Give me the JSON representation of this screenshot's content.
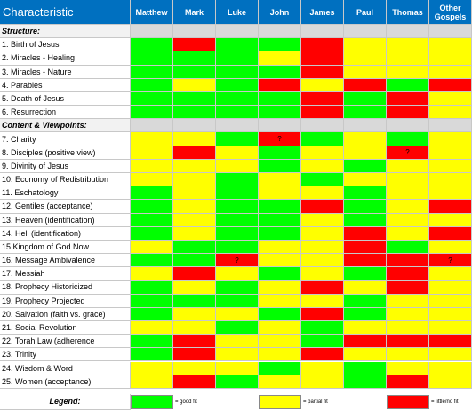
{
  "header": {
    "first": "Characteristic",
    "columns": [
      "Matthew",
      "Mark",
      "Luke",
      "John",
      "James",
      "Paul",
      "Thomas",
      "Other Gospels"
    ]
  },
  "colors": {
    "G": "#00ff00",
    "Y": "#ffff00",
    "R": "#ff0000",
    "grey": "#d9d9d9"
  },
  "rows": [
    {
      "section": true,
      "label": "Structure:"
    },
    {
      "label": "1. Birth of Jesus",
      "cells": [
        "G",
        "R",
        "G",
        "G",
        "R",
        "Y",
        "Y",
        "Y"
      ]
    },
    {
      "label": "2. Miracles - Healing",
      "cells": [
        "G",
        "G",
        "G",
        "Y",
        "R",
        "Y",
        "Y",
        "Y"
      ]
    },
    {
      "label": "3. Miracles - Nature",
      "cells": [
        "G",
        "G",
        "G",
        "G",
        "R",
        "Y",
        "Y",
        "Y"
      ]
    },
    {
      "label": "4. Parables",
      "cells": [
        "G",
        "Y",
        "G",
        "R",
        "Y",
        "R",
        "G",
        "R"
      ]
    },
    {
      "label": "5. Death of Jesus",
      "cells": [
        "G",
        "G",
        "G",
        "G",
        "R",
        "G",
        "R",
        "Y"
      ]
    },
    {
      "label": "6. Resurrection",
      "cells": [
        "G",
        "G",
        "G",
        "G",
        "R",
        "G",
        "R",
        "Y"
      ]
    },
    {
      "section": true,
      "label": "Content & Viewpoints:"
    },
    {
      "label": "7. Charity",
      "cells": [
        "Y",
        "Y",
        "G",
        "R",
        "G",
        "Y",
        "G",
        "Y"
      ],
      "marks": {
        "3": "?"
      }
    },
    {
      "label": "8. Disciples (positive view)",
      "cells": [
        "Y",
        "R",
        "Y",
        "G",
        "Y",
        "Y",
        "R",
        "Y"
      ],
      "marks": {
        "6": "?"
      }
    },
    {
      "label": "9. Divinity of Jesus",
      "cells": [
        "Y",
        "Y",
        "Y",
        "G",
        "Y",
        "G",
        "Y",
        "Y"
      ]
    },
    {
      "label": "10. Economy of Redistribution",
      "cells": [
        "Y",
        "Y",
        "G",
        "Y",
        "G",
        "Y",
        "Y",
        "Y"
      ]
    },
    {
      "label": "11. Eschatology",
      "cells": [
        "G",
        "Y",
        "G",
        "Y",
        "Y",
        "G",
        "Y",
        "Y"
      ]
    },
    {
      "label": "12. Gentiles (acceptance)",
      "cells": [
        "G",
        "Y",
        "G",
        "G",
        "R",
        "G",
        "Y",
        "R"
      ]
    },
    {
      "label": "13. Heaven (identification)",
      "cells": [
        "G",
        "Y",
        "G",
        "G",
        "Y",
        "G",
        "Y",
        "Y"
      ]
    },
    {
      "label": "14. Hell (identification)",
      "cells": [
        "G",
        "Y",
        "G",
        "G",
        "Y",
        "R",
        "Y",
        "R"
      ]
    },
    {
      "label": "15 Kingdom of God Now",
      "cells": [
        "Y",
        "G",
        "G",
        "Y",
        "Y",
        "R",
        "G",
        "Y"
      ]
    },
    {
      "label": "16. Message Ambivalence",
      "cells": [
        "G",
        "G",
        "R",
        "Y",
        "Y",
        "R",
        "R",
        "R"
      ],
      "marks": {
        "2": "?",
        "7": "?"
      }
    },
    {
      "label": "17. Messiah",
      "cells": [
        "Y",
        "R",
        "Y",
        "G",
        "Y",
        "G",
        "R",
        "Y"
      ]
    },
    {
      "label": "18. Prophecy Historicized",
      "cells": [
        "G",
        "Y",
        "G",
        "Y",
        "R",
        "Y",
        "R",
        "Y"
      ]
    },
    {
      "label": "19. Prophecy Projected",
      "cells": [
        "G",
        "G",
        "G",
        "Y",
        "Y",
        "G",
        "Y",
        "Y"
      ]
    },
    {
      "label": "20. Salvation (faith vs. grace)",
      "cells": [
        "G",
        "Y",
        "Y",
        "G",
        "R",
        "G",
        "Y",
        "Y"
      ]
    },
    {
      "label": "21. Social Revolution",
      "cells": [
        "Y",
        "Y",
        "G",
        "Y",
        "G",
        "Y",
        "Y",
        "Y"
      ]
    },
    {
      "label": "22. Torah Law (adherence",
      "cells": [
        "G",
        "R",
        "Y",
        "Y",
        "G",
        "R",
        "R",
        "R"
      ]
    },
    {
      "label": "23. Trinity",
      "cells": [
        "G",
        "R",
        "Y",
        "Y",
        "R",
        "Y",
        "Y",
        "Y"
      ]
    },
    {
      "label": "24. Wisdom & Word",
      "cells": [
        "Y",
        "Y",
        "Y",
        "G",
        "Y",
        "G",
        "Y",
        "Y"
      ]
    },
    {
      "label": "25. Women (acceptance)",
      "cells": [
        "Y",
        "R",
        "G",
        "Y",
        "Y",
        "G",
        "R",
        "Y"
      ]
    }
  ],
  "legend": {
    "title": "Legend:",
    "items": [
      {
        "color": "G",
        "text": "= good fit"
      },
      {
        "color": "Y",
        "text": "= partial fit"
      },
      {
        "color": "R",
        "text": "= little/no fit"
      }
    ]
  }
}
